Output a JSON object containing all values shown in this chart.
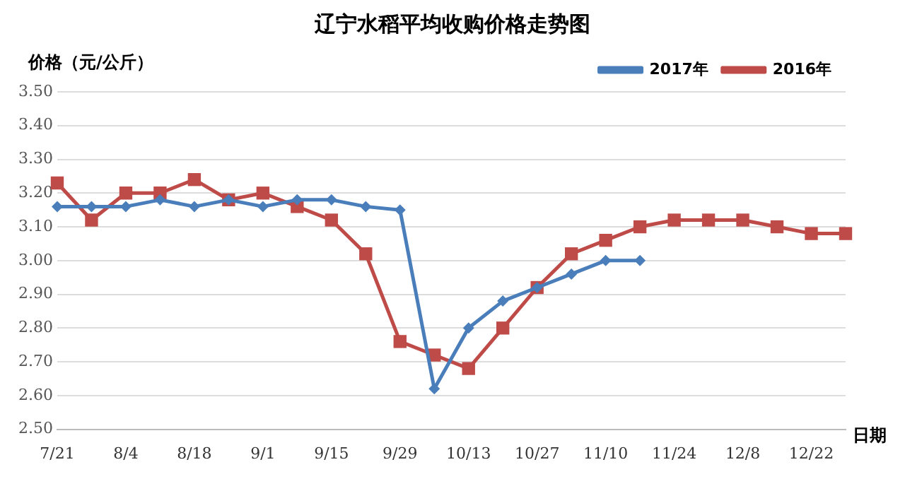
{
  "chart_data": {
    "type": "line",
    "title": "辽宁水稻平均收购价格走势图",
    "ylabel": "价格（元/公斤）",
    "xlabel": "日期",
    "categories": [
      "7/21",
      null,
      "8/4",
      null,
      "8/18",
      null,
      "9/1",
      null,
      "9/15",
      null,
      "9/29",
      null,
      "10/13",
      null,
      "10/27",
      null,
      "11/10",
      null,
      "11/24",
      null,
      "12/8",
      null,
      "12/22",
      null
    ],
    "series": [
      {
        "name": "2017年",
        "color": "#4a7ebb",
        "marker": "diamond",
        "values": [
          3.16,
          3.16,
          3.16,
          3.18,
          3.16,
          3.18,
          3.16,
          3.18,
          3.18,
          3.16,
          3.15,
          2.62,
          2.8,
          2.88,
          2.92,
          2.96,
          3.0,
          3.0,
          null,
          null,
          null,
          null,
          null,
          null
        ]
      },
      {
        "name": "2016年",
        "color": "#be4b48",
        "marker": "square",
        "values": [
          3.23,
          3.12,
          3.2,
          3.2,
          3.24,
          3.18,
          3.2,
          3.16,
          3.12,
          3.02,
          2.76,
          2.72,
          2.68,
          2.8,
          2.92,
          3.02,
          3.06,
          3.1,
          3.12,
          3.12,
          3.12,
          3.1,
          3.08,
          3.08
        ]
      }
    ],
    "ylim": [
      2.5,
      3.5
    ],
    "yticks": [
      {
        "value": 2.5,
        "label": "2.50"
      },
      {
        "value": 2.6,
        "label": "2.60"
      },
      {
        "value": 2.7,
        "label": "2.70"
      },
      {
        "value": 2.8,
        "label": "2.80"
      },
      {
        "value": 2.9,
        "label": "2.90"
      },
      {
        "value": 3.0,
        "label": "3.00"
      },
      {
        "value": 3.1,
        "label": "3.10"
      },
      {
        "value": 3.2,
        "label": "3.20"
      },
      {
        "value": 3.3,
        "label": "3.30"
      },
      {
        "value": 3.4,
        "label": "3.40"
      },
      {
        "value": 3.5,
        "label": "3.50"
      }
    ],
    "grid": "y",
    "legend": "top right",
    "line_style": "solid"
  }
}
